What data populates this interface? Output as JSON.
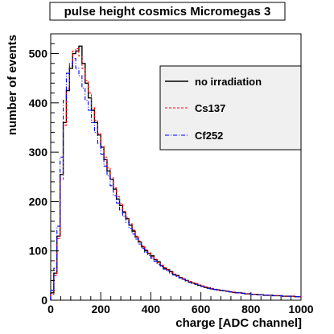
{
  "chart_data": {
    "type": "line",
    "title": "pulse height cosmics Micromegas 3",
    "xlabel": "charge [ADC channel]",
    "ylabel": "number of events",
    "xlim": [
      0,
      1000
    ],
    "ylim": [
      0,
      540
    ],
    "xticks": [
      0,
      200,
      400,
      600,
      800,
      1000
    ],
    "yticks": [
      0,
      100,
      200,
      300,
      400,
      500
    ],
    "grid": false,
    "legend_position": "top-right",
    "bin_width": 12.5,
    "series": [
      {
        "name": "no irradiation",
        "color": "#000000",
        "dash": "solid",
        "values": [
          15,
          55,
          130,
          255,
          360,
          425,
          470,
          500,
          505,
          515,
          480,
          440,
          410,
          385,
          360,
          335,
          310,
          285,
          262,
          245,
          225,
          205,
          192,
          178,
          165,
          152,
          140,
          128,
          118,
          108,
          100,
          95,
          90,
          82,
          78,
          70,
          65,
          62,
          58,
          52,
          50,
          46,
          43,
          40,
          37,
          35,
          33,
          30,
          28,
          26,
          25,
          23,
          22,
          21,
          20,
          19,
          18,
          17,
          16,
          15,
          15,
          14,
          13,
          13,
          12,
          12,
          11,
          11,
          10,
          10,
          10,
          9,
          9,
          9,
          8,
          8,
          8,
          8,
          7,
          7
        ]
      },
      {
        "name": "Cs137",
        "color": "#ff0000",
        "dash": "dashed",
        "values": [
          12,
          50,
          125,
          245,
          355,
          430,
          480,
          505,
          510,
          495,
          470,
          445,
          420,
          390,
          365,
          338,
          312,
          290,
          268,
          248,
          228,
          210,
          196,
          180,
          168,
          155,
          142,
          130,
          120,
          110,
          102,
          96,
          88,
          83,
          76,
          71,
          66,
          61,
          57,
          53,
          49,
          46,
          43,
          40,
          38,
          35,
          33,
          31,
          29,
          27,
          25,
          24,
          22,
          21,
          20,
          19,
          18,
          17,
          16,
          15,
          15,
          14,
          13,
          13,
          12,
          12,
          11,
          11,
          10,
          10,
          10,
          9,
          9,
          9,
          8,
          8,
          8,
          8,
          7,
          7
        ]
      },
      {
        "name": "Cf252",
        "color": "#0000ff",
        "dash": "dashdot",
        "values": [
          20,
          65,
          150,
          290,
          405,
          460,
          475,
          490,
          470,
          455,
          430,
          405,
          385,
          360,
          340,
          318,
          296,
          272,
          252,
          232,
          212,
          197,
          183,
          170,
          158,
          146,
          134,
          124,
          114,
          105,
          97,
          91,
          85,
          79,
          73,
          68,
          63,
          59,
          55,
          51,
          48,
          45,
          42,
          39,
          36,
          34,
          32,
          30,
          28,
          26,
          24,
          23,
          22,
          21,
          20,
          19,
          18,
          17,
          16,
          15,
          15,
          14,
          13,
          13,
          12,
          12,
          11,
          11,
          10,
          10,
          10,
          9,
          9,
          9,
          8,
          8,
          8,
          8,
          7,
          7
        ]
      }
    ]
  }
}
